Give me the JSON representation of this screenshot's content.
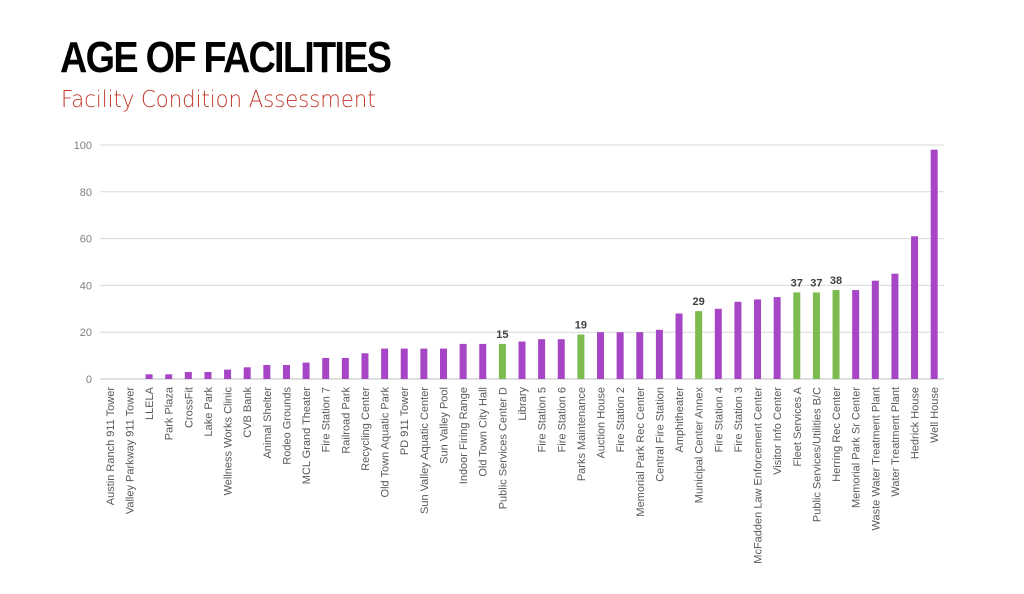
{
  "page": {
    "title": "AGE OF FACILITIES",
    "subtitle": "Facility Condition Assessment"
  },
  "colors": {
    "title": "#000000",
    "subtitle": "#c0392b",
    "default_bar": "#a646c6",
    "highlight_bar": "#7cbb4e",
    "gridline": "#d9d9d9",
    "axis": "#bfbfbf"
  },
  "chart_data": {
    "type": "bar",
    "title": "",
    "xlabel": "",
    "ylabel": "",
    "ylim": [
      0,
      100
    ],
    "yticks": [
      0,
      20,
      40,
      60,
      80,
      100
    ],
    "grid": true,
    "categories": [
      "Austin Ranch 911 Tower",
      "Valley Parkway 911 Tower",
      "LLELA",
      "Park Plaza",
      "CrossFit",
      "Lake Park",
      "Wellness Works Clinic",
      "CVB Bank",
      "Animal Shelter",
      "Rodeo Grounds",
      "MCL Grand Theater",
      "Fire Station 7",
      "Railroad Park",
      "Recycling Center",
      "Old Town Aquatic Park",
      "PD 911 Tower",
      "Sun Valley Aquatic Center",
      "Sun Valley Pool",
      "Indoor Firing Range",
      "Old Town City Hall",
      "Public Services Center D",
      "Library",
      "Fire Station 5",
      "Fire Station 6",
      "Parks Maintenance",
      "Auction House",
      "Fire Station 2",
      "Memorial Park Rec Center",
      "Central Fire Station",
      "Amphitheater",
      "Municipal Center Annex",
      "Fire Station 4",
      "Fire Station 3",
      "McFadden Law Enforcement Center",
      "Visitor Info Center",
      "Fleet Services A",
      "Public Services/Utilities B/C",
      "Herring Rec Center",
      "Memorial Park Sr Center",
      "Waste Water Treatment Plant",
      "Water Treatment Plant",
      "Hedrick House",
      "Well House"
    ],
    "values": [
      0,
      0,
      2,
      2,
      3,
      3,
      4,
      5,
      6,
      6,
      7,
      9,
      9,
      11,
      13,
      13,
      13,
      13,
      15,
      15,
      15,
      16,
      17,
      17,
      19,
      20,
      20,
      20,
      21,
      28,
      29,
      30,
      33,
      34,
      35,
      37,
      37,
      38,
      38,
      42,
      45,
      61,
      98
    ],
    "highlighted": [
      20,
      24,
      30,
      35,
      36,
      37
    ],
    "data_labels": [
      {
        "index": 20,
        "text": "15"
      },
      {
        "index": 24,
        "text": "19"
      },
      {
        "index": 30,
        "text": "29"
      },
      {
        "index": 35,
        "text": "37"
      },
      {
        "index": 36,
        "text": "37"
      },
      {
        "index": 37,
        "text": "38"
      }
    ]
  }
}
